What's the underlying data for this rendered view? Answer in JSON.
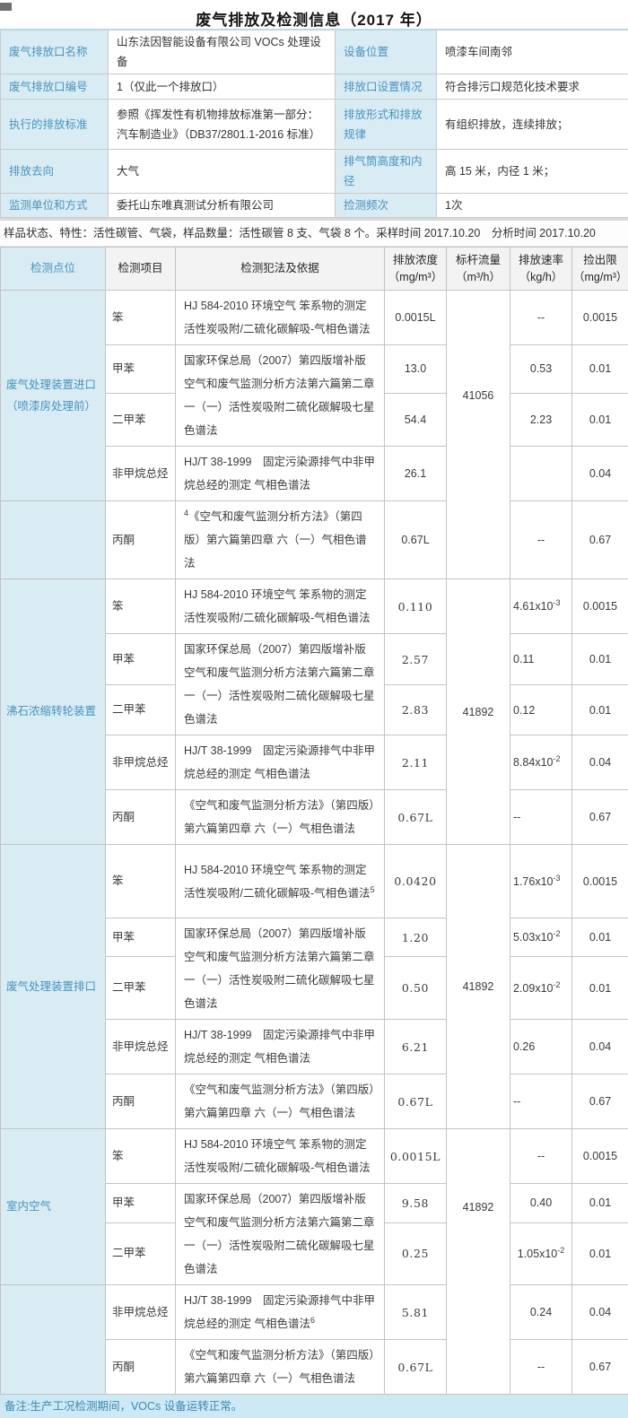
{
  "page": {
    "title": "废气排放及检测信息（2017 年）"
  },
  "info": {
    "rows": [
      {
        "label1": "废气排放口名称",
        "value1": "山东法因智能设备有限公司 VOCs 处理设备",
        "label2": "设备位置",
        "value2": "喷漆车间南邻"
      },
      {
        "label1": "废气排放口编号",
        "value1": "1（仅此一个排放口）",
        "label2": "排放口设置情况",
        "value2": "符合排污口规范化技术要求"
      },
      {
        "label1": "执行的排放标准",
        "value1": "参照《挥发性有机物排放标准第一部分：汽车制造业》（DB37/2801.1-2016 标准）",
        "label2": "排放形式和排放规律",
        "value2": "有组织排放，连续排放；"
      },
      {
        "label1": "排放去向",
        "value1": "大气",
        "label2": "排气筒高度和内径",
        "value2": "高 15 米，内径 1 米；"
      },
      {
        "label1": "监测单位和方式",
        "value1": "委托山东唯真测试分析有限公司",
        "label2": "捡测频次",
        "value2": "1次"
      }
    ]
  },
  "sample_line": "样品状态、特性：活性碳管、气袋，样品数量：活性碳管 8 支、气袋 8 个。采样时间 2017.10.20　分析时间 2017.10.20",
  "table": {
    "headers": [
      {
        "label": "检测点位",
        "unit": ""
      },
      {
        "label": "检测项目",
        "unit": ""
      },
      {
        "label": "检测犯法及依据",
        "unit": ""
      },
      {
        "label": "排放浓度",
        "unit": "（mg/m³）"
      },
      {
        "label": "标杆流量",
        "unit": "（m³/h）"
      },
      {
        "label": "排放速率",
        "unit": "（kg/h）"
      },
      {
        "label": "捡出限",
        "unit": "（mg/m³）"
      }
    ],
    "sections": [
      {
        "location": "废气处理装置进口（喷漆房处理前）",
        "flow": "41056",
        "rows": [
          {
            "item": "笨",
            "method": "HJ 584-2010 环境空气 笨系物的测定 活性炭吸附/二硫化碳解吸-气相色谱法",
            "conc": "0.0015L",
            "rate": "--",
            "limit": "0.0015"
          },
          {
            "item": "甲苯",
            "method": "国家环保总局（2007）第四版增补版空气和废气监测分析方法第六篇第二章一（一）活性炭吸附二硫化碳解吸七星色谱法",
            "conc": "13.0",
            "rate": "0.53",
            "limit": "0.01"
          },
          {
            "item": "二甲苯",
            "method": "",
            "conc": "54.4",
            "rate": "2.23",
            "limit": "0.01"
          },
          {
            "item": "非甲烷总烃",
            "method": "HJ/T 38-1999　固定污染源排气中非甲烷总经的测定 气相色谱法",
            "conc": "26.1",
            "rate": "",
            "limit": "0.04"
          },
          {
            "item": "丙酮",
            "method": "^4《空气和废气监测分析方法》（第四版）第六篇第四章 六（一）气相色谱法",
            "conc": "0.67L",
            "rate": "--",
            "limit": "0.67"
          }
        ]
      },
      {
        "location": "沸石浓缩转轮装置",
        "flow": "41892",
        "rows": [
          {
            "item": "笨",
            "method": "HJ 584-2010 环境空气 笨系物的测定 活性炭吸附/二硫化碳解吸-气相色谱法",
            "conc": "0.110",
            "rate": "4.61x10^-3",
            "limit": "0.0015"
          },
          {
            "item": "甲苯",
            "method": "国家环保总局（2007）第四版增补版空气和废气监测分析方法第六篇第二章一（一）活性炭吸附二硫化碳解吸七星色谱法",
            "conc": "2.57",
            "rate": "0.11",
            "limit": "0.01"
          },
          {
            "item": "二甲苯",
            "method": "",
            "conc": "2.83",
            "rate": "0.12",
            "limit": "0.01"
          },
          {
            "item": "非甲烷总烃",
            "method": "HJ/T 38-1999　固定污染源排气中非甲烷总经的测定 气相色谱法",
            "conc": "2.11",
            "rate": "8.84x10^-2",
            "limit": "0.04"
          },
          {
            "item": "丙酮",
            "method": "《空气和废气监测分析方法》（第四版）第六篇第四章 六（一）气相色谱法",
            "conc": "0.67L",
            "rate": "--",
            "limit": "0.67"
          }
        ]
      },
      {
        "location": "废气处理装置排口",
        "flow": "41892",
        "rows": [
          {
            "item": "笨",
            "method": "HJ 584-2010 环境空气 笨系物的测定 活性炭吸附/二硫化碳解吸-气相色谱法^5",
            "conc": "0.0420",
            "rate": "1.76x10^-3",
            "limit": "0.0015"
          },
          {
            "item": "甲苯",
            "method": "国家环保总局（2007）第四版增补版空气和废气监测分析方法第六篇第二章一（一）活性炭吸附二硫化碳解吸七星色谱法",
            "conc": "1.20",
            "rate": "5.03x10^-2",
            "limit": "0.01"
          },
          {
            "item": "二甲苯",
            "method": "",
            "conc": "0.50",
            "rate": "2.09x10^-2",
            "limit": "0.01"
          },
          {
            "item": "非甲烷总烃",
            "method": "HJ/T 38-1999　固定污染源排气中非甲烷总经的测定 气相色谱法",
            "conc": "6.21",
            "rate": "0.26",
            "limit": "0.04"
          },
          {
            "item": "丙酮",
            "method": "《空气和废气监测分析方法》（第四版）第六篇第四章 六（一）气相色谱法",
            "conc": "0.67L",
            "rate": "--",
            "limit": "0.67"
          }
        ]
      },
      {
        "location": "室内空气",
        "flow": "41892",
        "rows": [
          {
            "item": "笨",
            "method": "HJ 584-2010 环境空气 笨系物的测定 活性炭吸附/二硫化碳解吸-气相色谱法",
            "conc": "0.0015L",
            "rate": "--",
            "limit": "0.0015"
          },
          {
            "item": "甲苯",
            "method": "国家环保总局（2007）第四版增补版空气和废气监测分析方法第六篇第二章一（一）活性炭吸附二硫化碳解吸七星色谱法",
            "conc": "9.58",
            "rate": "0.40",
            "limit": "0.01"
          },
          {
            "item": "二甲苯",
            "method": "",
            "conc": "0.25",
            "rate": "1.05x10^-2",
            "limit": "0.01"
          },
          {
            "item": "非甲烷总烃",
            "method": "HJ/T 38-1999　固定污染源排气中非甲烷总经的测定 气相色谱法^6",
            "conc": "5.81",
            "rate": "0.24",
            "limit": "0.04"
          },
          {
            "item": "丙酮",
            "method": "《空气和废气监测分析方法》（第四版）第六篇第四章 六（一）气相色谱法",
            "conc": "0.67L",
            "rate": "--",
            "limit": "0.67"
          }
        ]
      }
    ]
  },
  "footer": {
    "note": "备注:生产工况检测期间，VOCs 设备运转正常。"
  },
  "colors": {
    "accent_bg": "#d9ecf4",
    "accent_text": "#4793be",
    "border": "#c3c3c3",
    "footer_bg": "#cde9f5",
    "footer_text": "#3e88b0"
  }
}
